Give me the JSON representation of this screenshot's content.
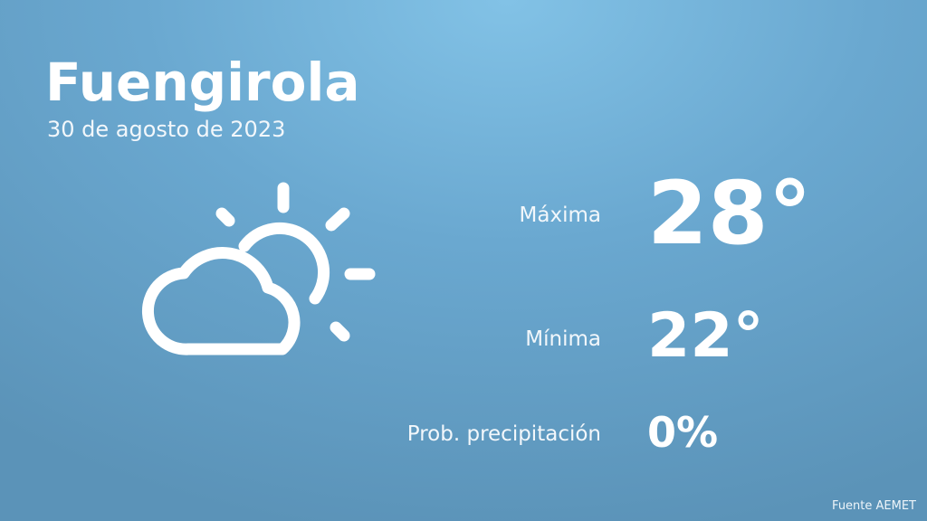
{
  "city": "Fuengirola",
  "date": "30 de agosto de 2023",
  "icon": "partly-cloudy-icon",
  "max": {
    "label": "Máxima",
    "value": "28°"
  },
  "min": {
    "label": "Mínima",
    "value": "22°"
  },
  "precip": {
    "label": "Prob. precipitación",
    "value": "0%"
  },
  "source": "Fuente AEMET",
  "colors": {
    "background_top": "#82c2e6",
    "background_bottom": "#5b93b8",
    "text": "#ffffff"
  }
}
